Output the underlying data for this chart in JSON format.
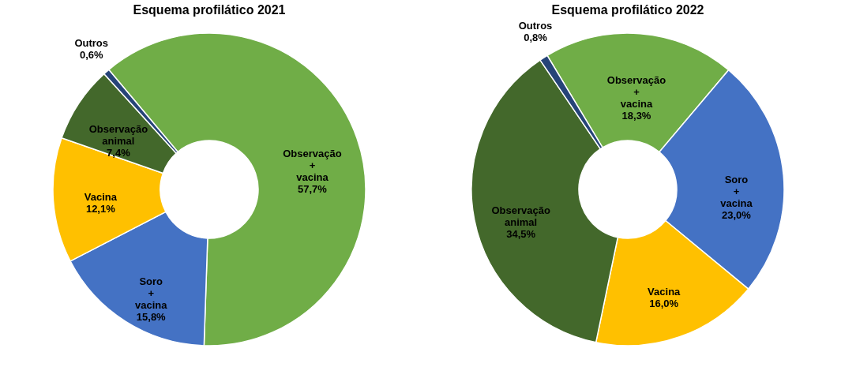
{
  "chart_data": [
    {
      "type": "donut",
      "title": "Esquema profilático 2021",
      "categories": [
        "Observação + vacina",
        "Soro + vacina",
        "Vacina",
        "Observação animal",
        "Outros"
      ],
      "values": [
        57.7,
        15.8,
        12.1,
        7.4,
        0.6
      ],
      "value_labels": [
        "57,7%",
        "15,8%",
        "12,1%",
        "7,4%",
        "0,6%"
      ],
      "colors": [
        "#70ad47",
        "#4472c4",
        "#ffc000",
        "#43682b",
        "#264478"
      ],
      "legend": false
    },
    {
      "type": "donut",
      "title": "Esquema profilático 2022",
      "categories": [
        "Observação + vacina",
        "Soro + vacina",
        "Vacina",
        "Observação animal",
        "Outros"
      ],
      "values": [
        18.3,
        23.0,
        16.0,
        34.5,
        0.8
      ],
      "value_labels": [
        "18,3%",
        "23,0%",
        "16,0%",
        "34,5%",
        "0,8%"
      ],
      "colors": [
        "#70ad47",
        "#4472c4",
        "#ffc000",
        "#43682b",
        "#264478"
      ],
      "legend": false
    }
  ]
}
